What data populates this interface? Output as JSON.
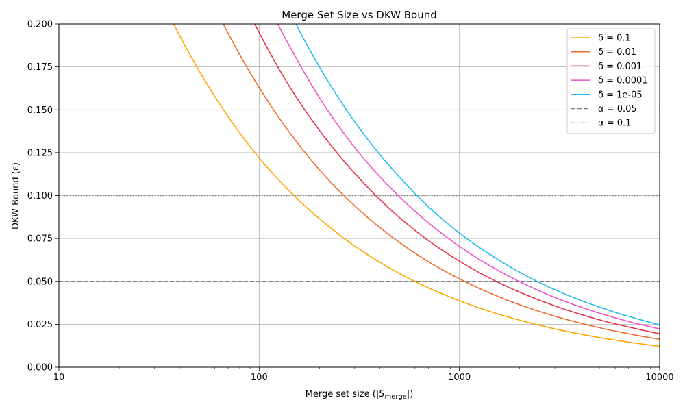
{
  "chart_data": {
    "type": "line",
    "title": "Merge Set Size vs DKW Bound",
    "xlabel_prefix": "Merge set size (|",
    "xlabel_var": "S",
    "xlabel_sub": "merge",
    "xlabel_suffix": "|)",
    "ylabel": "DKW Bound (ε)",
    "xscale": "log",
    "xlim": [
      10,
      10000
    ],
    "ylim": [
      0,
      0.2
    ],
    "x_ticks": [
      10,
      100,
      1000,
      10000
    ],
    "x_tick_labels": [
      "10",
      "100",
      "1000",
      "10000"
    ],
    "y_ticks": [
      0,
      0.025,
      0.05,
      0.075,
      0.1,
      0.125,
      0.15,
      0.175,
      0.2
    ],
    "y_tick_labels": [
      "0.000",
      "0.025",
      "0.050",
      "0.075",
      "0.100",
      "0.125",
      "0.150",
      "0.175",
      "0.200"
    ],
    "grid": true,
    "legend_position": "top-right",
    "series": [
      {
        "name": "δ = 0.1",
        "color": "#ffa500",
        "style": "solid",
        "x": [
          37.4,
          50,
          75,
          100,
          150,
          200,
          300,
          500,
          750,
          1000,
          1500,
          2000,
          3000,
          5000,
          7500,
          10000
        ],
        "y": [
          0.2,
          0.173,
          0.141,
          0.122,
          0.0998,
          0.0865,
          0.0706,
          0.0547,
          0.0447,
          0.0387,
          0.0316,
          0.0274,
          0.0223,
          0.0173,
          0.0141,
          0.0122
        ]
      },
      {
        "name": "δ = 0.01",
        "color": "#ee6c2e",
        "style": "solid",
        "x": [
          66.2,
          75,
          100,
          150,
          200,
          300,
          500,
          750,
          1000,
          1500,
          2000,
          3000,
          5000,
          7500,
          10000
        ],
        "y": [
          0.2,
          0.188,
          0.163,
          0.133,
          0.115,
          0.094,
          0.0728,
          0.0594,
          0.0515,
          0.042,
          0.0364,
          0.0297,
          0.023,
          0.0188,
          0.0163
        ]
      },
      {
        "name": "δ = 0.001",
        "color": "#e63246",
        "style": "solid",
        "x": [
          95,
          100,
          150,
          200,
          300,
          500,
          750,
          1000,
          1500,
          2000,
          3000,
          5000,
          7500,
          10000
        ],
        "y": [
          0.2,
          0.195,
          0.159,
          0.138,
          0.113,
          0.0874,
          0.0713,
          0.0618,
          0.0504,
          0.0437,
          0.0357,
          0.0276,
          0.0226,
          0.0195
        ]
      },
      {
        "name": "δ = 0.0001",
        "color": "#f050c8",
        "style": "solid",
        "x": [
          123.8,
          150,
          200,
          300,
          500,
          750,
          1000,
          1500,
          2000,
          3000,
          5000,
          7500,
          10000
        ],
        "y": [
          0.2,
          0.182,
          0.157,
          0.128,
          0.0995,
          0.0813,
          0.0704,
          0.0575,
          0.0498,
          0.0406,
          0.0315,
          0.0257,
          0.0223
        ]
      },
      {
        "name": "δ = 1e-05",
        "color": "#22bbee",
        "style": "solid",
        "x": [
          152.6,
          200,
          300,
          500,
          750,
          1000,
          1500,
          2000,
          3000,
          5000,
          7500,
          10000
        ],
        "y": [
          0.2,
          0.175,
          0.143,
          0.111,
          0.0903,
          0.0782,
          0.0639,
          0.0553,
          0.0451,
          0.035,
          0.0286,
          0.0247
        ]
      },
      {
        "name": "α = 0.05",
        "color": "#808080",
        "style": "dashed",
        "hline": 0.05
      },
      {
        "name": "α = 0.1",
        "color": "#808080",
        "style": "dotted",
        "hline": 0.1
      }
    ]
  }
}
